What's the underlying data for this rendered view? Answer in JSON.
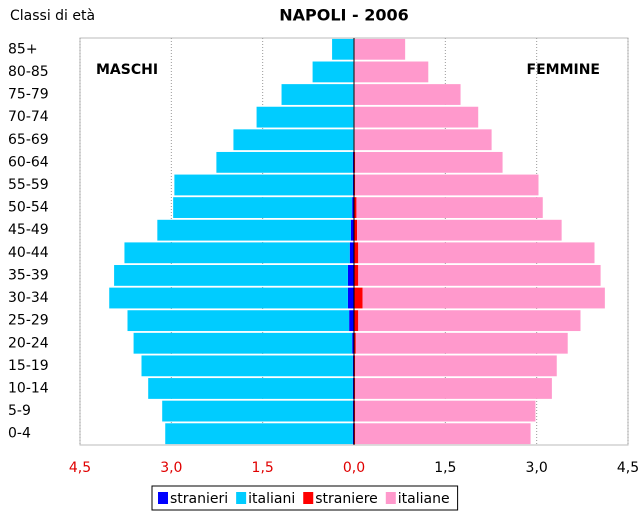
{
  "chart_data": {
    "type": "pyramid",
    "title": "NAPOLI - 2006",
    "y_label": "Classi di età",
    "left_label": "MASCHI",
    "right_label": "FEMMINE",
    "categories": [
      "0-4",
      "5-9",
      "10-14",
      "15-19",
      "20-24",
      "25-29",
      "30-34",
      "35-39",
      "40-44",
      "45-49",
      "50-54",
      "55-59",
      "60-64",
      "65-69",
      "70-74",
      "75-79",
      "80-85",
      "85+"
    ],
    "series": [
      {
        "name": "stranieri",
        "color": "#0000ff",
        "values": [
          -0.02,
          -0.02,
          -0.02,
          -0.02,
          -0.03,
          -0.08,
          -0.1,
          -0.1,
          -0.07,
          -0.05,
          -0.03,
          -0.02,
          -0.02,
          -0.01,
          -0.01,
          -0.01,
          -0.01,
          -0.01
        ]
      },
      {
        "name": "italiani",
        "color": "#00ccff",
        "values": [
          -3.08,
          -3.13,
          -3.36,
          -3.47,
          -3.59,
          -3.64,
          -3.92,
          -3.84,
          -3.7,
          -3.18,
          -2.94,
          -2.93,
          -2.24,
          -1.97,
          -1.59,
          -1.18,
          -0.67,
          -0.35
        ]
      },
      {
        "name": "straniere",
        "color": "#ff0000",
        "values": [
          0.02,
          0.02,
          0.02,
          0.02,
          0.03,
          0.07,
          0.14,
          0.07,
          0.07,
          0.05,
          0.04,
          0.02,
          0.02,
          0.01,
          0.01,
          0.01,
          0.01,
          0.01
        ]
      },
      {
        "name": "italiane",
        "color": "#ff99cc",
        "values": [
          2.88,
          2.96,
          3.23,
          3.31,
          3.48,
          3.65,
          3.98,
          3.98,
          3.88,
          3.36,
          3.06,
          3.01,
          2.42,
          2.25,
          2.03,
          1.74,
          1.21,
          0.83
        ]
      }
    ],
    "xlim": [
      -4.5,
      4.5
    ],
    "xticks": [
      {
        "value": -4.5,
        "label": "4,5"
      },
      {
        "value": -3,
        "label": "3,0"
      },
      {
        "value": -1.5,
        "label": "1,5"
      },
      {
        "value": 0,
        "label": "0,0"
      },
      {
        "value": 1.5,
        "label": "1,5"
      },
      {
        "value": 3,
        "label": "3,0"
      },
      {
        "value": 4.5,
        "label": "4,5"
      }
    ],
    "grid": true
  }
}
